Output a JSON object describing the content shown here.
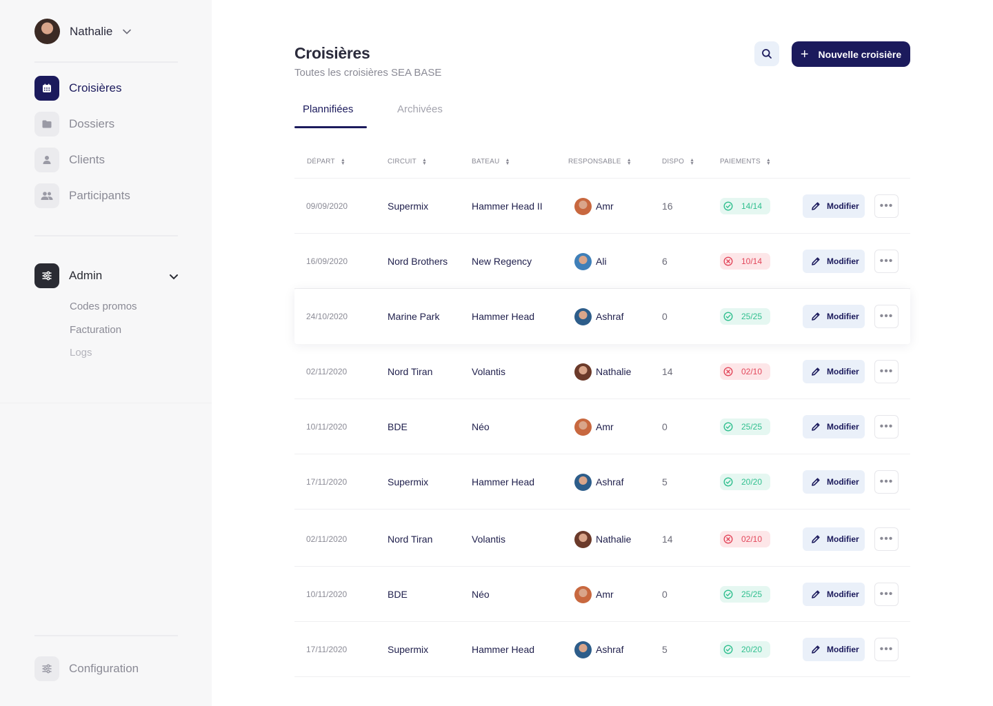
{
  "user": {
    "name": "Nathalie"
  },
  "nav": {
    "items": [
      {
        "label": "Croisières",
        "icon": "calendar-icon",
        "active": true
      },
      {
        "label": "Dossiers",
        "icon": "folder-icon",
        "active": false
      },
      {
        "label": "Clients",
        "icon": "user-icon",
        "active": false
      },
      {
        "label": "Participants",
        "icon": "users-icon",
        "active": false
      }
    ],
    "admin": {
      "label": "Admin",
      "icon": "sliders-icon",
      "sub_items": [
        "Codes promos",
        "Facturation",
        "Logs"
      ]
    },
    "configuration": {
      "label": "Configuration",
      "icon": "sliders-icon"
    }
  },
  "header": {
    "title": "Croisières",
    "subtitle": "Toutes les croisières SEA BASE",
    "search_icon": "search-icon",
    "new_button": "Nouvelle croisière"
  },
  "tabs": [
    {
      "label": "Plannifiées",
      "active": true
    },
    {
      "label": "Archivées",
      "active": false
    }
  ],
  "table": {
    "columns": [
      "DÉPART",
      "CIRCUIT",
      "BATEAU",
      "RESPONSABLE",
      "DISPO",
      "PAIEMENTS"
    ],
    "edit_label": "Modifier",
    "more_label": "•••",
    "rows": [
      {
        "depart": "09/09/2020",
        "circuit": "Supermix",
        "bateau": "Hammer Head II",
        "responsable": "Amr",
        "dispo": "16",
        "paiements": "14/14",
        "pay_status": "ok"
      },
      {
        "depart": "16/09/2020",
        "circuit": "Nord Brothers",
        "bateau": "New Regency",
        "responsable": "Ali",
        "dispo": "6",
        "paiements": "10/14",
        "pay_status": "ko"
      },
      {
        "depart": "24/10/2020",
        "circuit": "Marine Park",
        "bateau": "Hammer Head",
        "responsable": "Ashraf",
        "dispo": "0",
        "paiements": "25/25",
        "pay_status": "ok",
        "highlight": true
      },
      {
        "depart": "02/11/2020",
        "circuit": "Nord Tiran",
        "bateau": "Volantis",
        "responsable": "Nathalie",
        "dispo": "14",
        "paiements": "02/10",
        "pay_status": "ko"
      },
      {
        "depart": "10/11/2020",
        "circuit": "BDE",
        "bateau": "Néo",
        "responsable": "Amr",
        "dispo": "0",
        "paiements": "25/25",
        "pay_status": "ok"
      },
      {
        "depart": "17/11/2020",
        "circuit": "Supermix",
        "bateau": "Hammer Head",
        "responsable": "Ashraf",
        "dispo": "5",
        "paiements": "20/20",
        "pay_status": "ok"
      },
      {
        "depart": "02/11/2020",
        "circuit": "Nord Tiran",
        "bateau": "Volantis",
        "responsable": "Nathalie",
        "dispo": "14",
        "paiements": "02/10",
        "pay_status": "ko"
      },
      {
        "depart": "10/11/2020",
        "circuit": "BDE",
        "bateau": "Néo",
        "responsable": "Amr",
        "dispo": "0",
        "paiements": "25/25",
        "pay_status": "ok"
      },
      {
        "depart": "17/11/2020",
        "circuit": "Supermix",
        "bateau": "Hammer Head",
        "responsable": "Ashraf",
        "dispo": "5",
        "paiements": "20/20",
        "pay_status": "ok"
      }
    ]
  },
  "colors": {
    "brand": "#1b1a5c",
    "success": "#2fbf8e",
    "danger": "#e2465a",
    "avatar_amr": "#c8683f",
    "avatar_ali": "#3f7fb8",
    "avatar_ashraf": "#2d5d8a",
    "avatar_nathalie": "#6b3a2a"
  }
}
